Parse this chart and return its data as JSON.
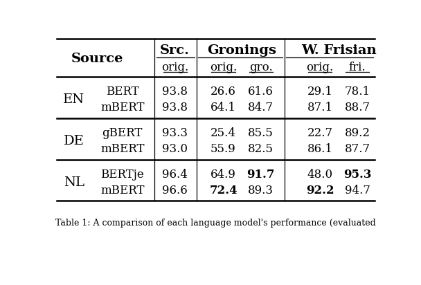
{
  "col_headers_top": [
    "Src.",
    "Gronings",
    "W. Frisian"
  ],
  "col_headers_sub": [
    "orig.",
    "orig.",
    "gro.",
    "orig.",
    "fri."
  ],
  "rows": [
    {
      "source": "EN",
      "model": "BERT",
      "vals": [
        "93.8",
        "26.6",
        "61.6",
        "29.1",
        "78.1"
      ],
      "bold": [
        false,
        false,
        false,
        false,
        false
      ]
    },
    {
      "source": "EN",
      "model": "mBERT",
      "vals": [
        "93.8",
        "64.1",
        "84.7",
        "87.1",
        "88.7"
      ],
      "bold": [
        false,
        false,
        false,
        false,
        false
      ]
    },
    {
      "source": "DE",
      "model": "gBERT",
      "vals": [
        "93.3",
        "25.4",
        "85.5",
        "22.7",
        "89.2"
      ],
      "bold": [
        false,
        false,
        false,
        false,
        false
      ]
    },
    {
      "source": "DE",
      "model": "mBERT",
      "vals": [
        "93.0",
        "55.9",
        "82.5",
        "86.1",
        "87.7"
      ],
      "bold": [
        false,
        false,
        false,
        false,
        false
      ]
    },
    {
      "source": "NL",
      "model": "BERTje",
      "vals": [
        "96.4",
        "64.9",
        "91.7",
        "48.0",
        "95.3"
      ],
      "bold": [
        false,
        false,
        true,
        false,
        true
      ]
    },
    {
      "source": "NL",
      "model": "mBERT",
      "vals": [
        "96.6",
        "72.4",
        "89.3",
        "92.2",
        "94.7"
      ],
      "bold": [
        false,
        true,
        false,
        true,
        false
      ]
    }
  ],
  "caption": "Table 1: A comparison of each language model's performance (evaluated",
  "bg_color": "#ffffff",
  "text_color": "#000000"
}
